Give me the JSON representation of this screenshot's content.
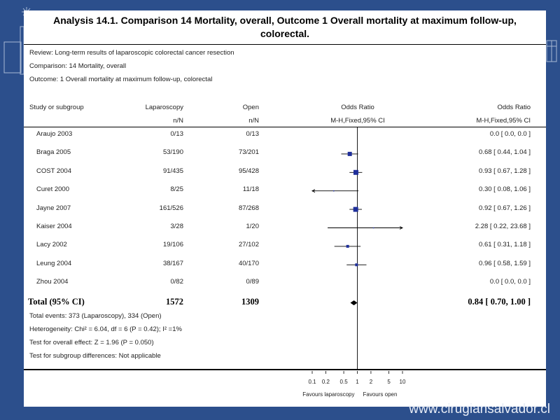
{
  "slide": {
    "footer_url": "www.cirugiansalvador.cl"
  },
  "title_line1": "Analysis 14.1.   Comparison 14 Mortality, overall, Outcome 1 Overall mortality at maximum follow-up,",
  "title_line2": "colorectal.",
  "meta": {
    "review": "Review:   Long-term results of laparoscopic colorectal cancer resection",
    "comparison": "Comparison:   14 Mortality, overall",
    "outcome": "Outcome:   1 Overall mortality at maximum follow-up, colorectal"
  },
  "headers": {
    "study": "Study or subgroup",
    "group1": "Laparoscopy",
    "group1_sub": "n/N",
    "group2": "Open",
    "group2_sub": "n/N",
    "plot": "Odds Ratio",
    "plot_sub": "M-H,Fixed,95% CI",
    "effect": "Odds Ratio",
    "effect_sub": "M-H,Fixed,95% CI"
  },
  "colors": {
    "slide_bg": "#2c4f8c",
    "marker": "#1f2f9a",
    "diamond": "#000000"
  },
  "chart_data": {
    "type": "forest",
    "scale": "log",
    "null_value": 1,
    "xlim": [
      0.1,
      10
    ],
    "x_ticks": [
      "0.1",
      "0.2",
      "0.5",
      "1",
      "2",
      "5",
      "10"
    ],
    "x_tick_values": [
      0.1,
      0.2,
      0.5,
      1,
      2,
      5,
      10
    ],
    "label_left": "Favours laparoscopy",
    "label_right": "Favours open",
    "studies": [
      {
        "name": "Araujo 2003",
        "lap": "0/13",
        "open": "0/13",
        "or": null,
        "lo": null,
        "hi": null,
        "ci_text": "0.0 [ 0.0, 0.0 ]",
        "size": 0
      },
      {
        "name": "Braga 2005",
        "lap": "53/190",
        "open": "73/201",
        "or": 0.68,
        "lo": 0.44,
        "hi": 1.04,
        "ci_text": "0.68 [ 0.44, 1.04 ]",
        "size": 6
      },
      {
        "name": "COST 2004",
        "lap": "91/435",
        "open": "95/428",
        "or": 0.93,
        "lo": 0.67,
        "hi": 1.28,
        "ci_text": "0.93 [ 0.67, 1.28 ]",
        "size": 7
      },
      {
        "name": "Curet 2000",
        "lap": "8/25",
        "open": "11/18",
        "or": 0.3,
        "lo": 0.08,
        "hi": 1.06,
        "ci_text": "0.30 [ 0.08, 1.06 ]",
        "size": 1
      },
      {
        "name": "Jayne 2007",
        "lap": "161/526",
        "open": "87/268",
        "or": 0.92,
        "lo": 0.67,
        "hi": 1.26,
        "ci_text": "0.92 [ 0.67, 1.26 ]",
        "size": 7
      },
      {
        "name": "Kaiser 2004",
        "lap": "3/28",
        "open": "1/20",
        "or": 2.28,
        "lo": 0.22,
        "hi": 23.68,
        "ci_text": "2.28 [ 0.22, 23.68 ]",
        "size": 1
      },
      {
        "name": "Lacy 2002",
        "lap": "19/106",
        "open": "27/102",
        "or": 0.61,
        "lo": 0.31,
        "hi": 1.18,
        "ci_text": "0.61 [ 0.31, 1.18 ]",
        "size": 4
      },
      {
        "name": "Leung 2004",
        "lap": "38/167",
        "open": "40/170",
        "or": 0.96,
        "lo": 0.58,
        "hi": 1.59,
        "ci_text": "0.96 [ 0.58, 1.59 ]",
        "size": 4
      },
      {
        "name": "Zhou 2004",
        "lap": "0/82",
        "open": "0/89",
        "or": null,
        "lo": null,
        "hi": null,
        "ci_text": "0.0 [ 0.0, 0.0 ]",
        "size": 0
      }
    ],
    "total": {
      "name": "Total (95% CI)",
      "lap": "1572",
      "open": "1309",
      "or": 0.84,
      "lo": 0.7,
      "hi": 1.0,
      "ci_text": "0.84 [ 0.70, 1.00 ]"
    },
    "notes": [
      "Total events: 373 (Laparoscopy), 334 (Open)",
      "Heterogeneity: Chi² = 6.04, df = 6 (P = 0.42); I² =1%",
      "Test for overall effect: Z = 1.96 (P = 0.050)",
      "Test for subgroup differences: Not applicable"
    ]
  }
}
